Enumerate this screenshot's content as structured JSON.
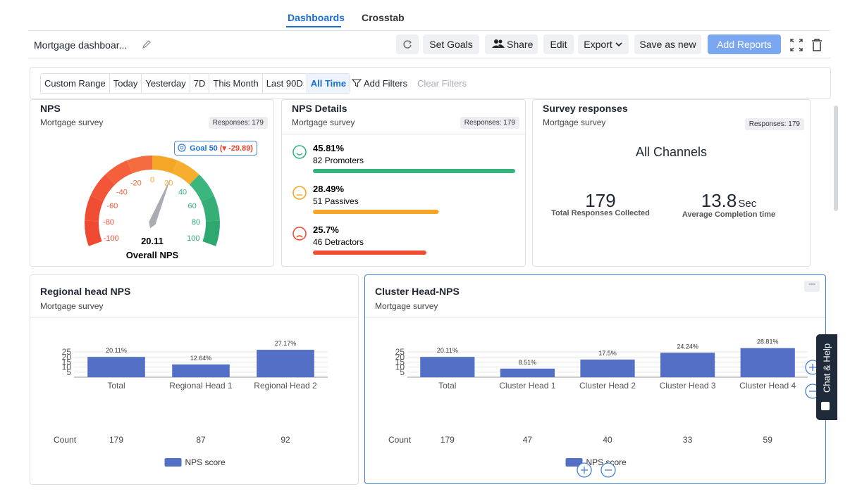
{
  "tabs": [
    "Dashboards",
    "Crosstab"
  ],
  "toolbar": {
    "title": "Mortgage dashboar...",
    "buttons": [
      "Set Goals",
      "Share",
      "Edit",
      "Export",
      "Save as new",
      "Add Reports"
    ]
  },
  "filters": {
    "ranges": [
      "Custom Range",
      "Today",
      "Yesterday",
      "7D",
      "This Month",
      "Last 90D",
      "All Time"
    ],
    "add": "Add Filters",
    "clear": "Clear Filters"
  },
  "nps_card": {
    "title": "NPS",
    "subtitle": "Mortgage survey",
    "badge": "Responses: 179",
    "goal": "Goal 50",
    "goal_delta": "(▾ -29.89)",
    "gauge": {
      "min": -100,
      "max": 100,
      "ticks": [
        -100,
        -80,
        -60,
        -40,
        -20,
        0,
        20,
        40,
        60,
        80,
        100
      ],
      "band_colors": [
        "#ef4a31",
        "#f04e33",
        "#f25537",
        "#f3603b",
        "#f46c40",
        "#f6a627",
        "#f7ae2e",
        "#3db67e",
        "#35af76",
        "#2ea86e"
      ],
      "value": 20.11,
      "label": "Overall NPS"
    }
  },
  "details_card": {
    "title": "NPS Details",
    "subtitle": "Mortgage survey",
    "badge": "Responses: 179",
    "items": [
      {
        "value": 45.81,
        "value_label": "45.81%",
        "label": "82 Promoters",
        "color": "#35b37e"
      },
      {
        "value": 28.49,
        "value_label": "28.49%",
        "label": "51 Passives",
        "color": "#f6a623"
      },
      {
        "value": 25.7,
        "value_label": "25.7%",
        "label": "46 Detractors",
        "color": "#f04e33"
      }
    ]
  },
  "survey_card": {
    "title": "Survey responses",
    "subtitle": "Mortgage survey",
    "badge": "Responses: 179",
    "heading": "All Channels",
    "stats": [
      {
        "value": 179,
        "label": "Total Responses Collected"
      },
      {
        "value": 13.8,
        "unit": "Sec",
        "label": "Average Completion time"
      }
    ]
  },
  "regional_card": {
    "title": "Regional head NPS",
    "subtitle": "Mortgage survey",
    "chart": {
      "type": "bar",
      "categories": [
        "Total",
        "Regional Head 1",
        "Regional Head 2"
      ],
      "values": [
        20.11,
        12.64,
        27.17
      ],
      "value_labels": [
        "20.11%",
        "12.64%",
        "27.17%"
      ],
      "ylim": [
        0,
        30
      ],
      "yticks": [
        5,
        10,
        15,
        20,
        25
      ],
      "color": "#5470c6",
      "count_label": "Count",
      "counts": [
        179,
        87,
        92
      ],
      "series_name": "NPS score"
    }
  },
  "cluster_card": {
    "title": "Cluster Head-NPS",
    "subtitle": "Mortgage survey",
    "chart": {
      "type": "bar",
      "categories": [
        "Total",
        "Cluster  Head 1",
        "Cluster  Head 2",
        "Cluster  Head 3",
        "Cluster  Head 4"
      ],
      "values": [
        20.11,
        8.51,
        17.5,
        24.24,
        28.81
      ],
      "value_labels": [
        "20.11%",
        "8.51%",
        "17.5%",
        "24.24%",
        "28.81%"
      ],
      "ylim": [
        0,
        30
      ],
      "yticks": [
        5,
        10,
        15,
        20,
        25
      ],
      "color": "#5470c6",
      "count_label": "Count",
      "counts": [
        179,
        47,
        40,
        33,
        59
      ],
      "series_name": "NPS score"
    }
  },
  "chat": "Chat & Help"
}
